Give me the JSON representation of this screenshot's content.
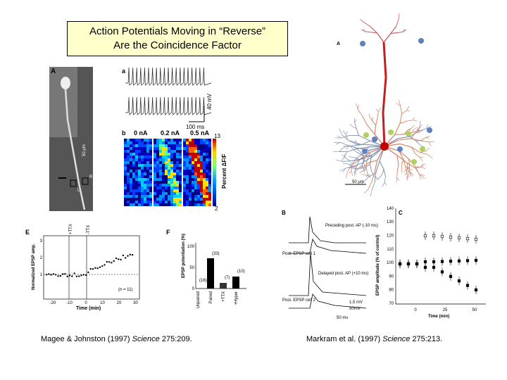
{
  "header": {
    "title_lines": [
      "Action Potentials Moving in “Reverse”",
      "Are the Coincidence Factor"
    ]
  },
  "left_figure": {
    "panel_labels": [
      "A",
      "a",
      "b",
      "E",
      "F"
    ],
    "scale_labels": [
      "40 mV",
      "100 ms"
    ],
    "photo_labels": [
      "50 μm",
      "R",
      "L"
    ],
    "current_labels": [
      "0 nA",
      "0.2 nA",
      "0.5 nA"
    ],
    "colorbar": {
      "label": "Percent ΔF/F",
      "max": "13",
      "min": "2"
    },
    "plot_e": {
      "y_label": "Normalized EPSP amp.",
      "x_label": "Time (min)",
      "annotations": [
        "+TTX",
        "-TTX",
        "(n = 11)"
      ],
      "xticks": [
        "-20",
        "-10",
        "0",
        "10",
        "20",
        "30"
      ],
      "yticks": [
        "1",
        "2",
        "3"
      ]
    },
    "plot_f": {
      "y_label": "EPSP potentiation (%)",
      "categories": [
        "Unpaired",
        "Paired",
        "+TTX",
        "+Hyper"
      ],
      "counts": [
        "(16)",
        "(33)",
        "(7)",
        "(10)"
      ],
      "yticks": [
        "0",
        "50",
        "100"
      ]
    }
  },
  "right_figure": {
    "panel_labels": [
      "A",
      "B",
      "C"
    ],
    "scale_label": "50 μm",
    "plot_b": {
      "labels": [
        "Preceding post. AP (-10 ms)",
        "Post. EPSP cell 1",
        "Delayed post. AP (+10 ms)",
        "Post. EPSP cell 2",
        "1.5 mV",
        "50mV",
        "50 ms"
      ]
    },
    "plot_c": {
      "y_label": "EPSP amplitude (% of control)",
      "x_label": "Time (min)",
      "yticks": [
        "70",
        "80",
        "90",
        "100",
        "110",
        "120",
        "130",
        "140"
      ],
      "xticks": [
        "0",
        "25",
        "50"
      ]
    }
  },
  "citations": [
    {
      "authors": "Magee & Johnston (1997) ",
      "journal": "Science",
      "ref": " 275:209."
    },
    {
      "authors": "Markram et al.  (1997) ",
      "journal": "Science",
      "ref": " 275:213."
    }
  ]
}
